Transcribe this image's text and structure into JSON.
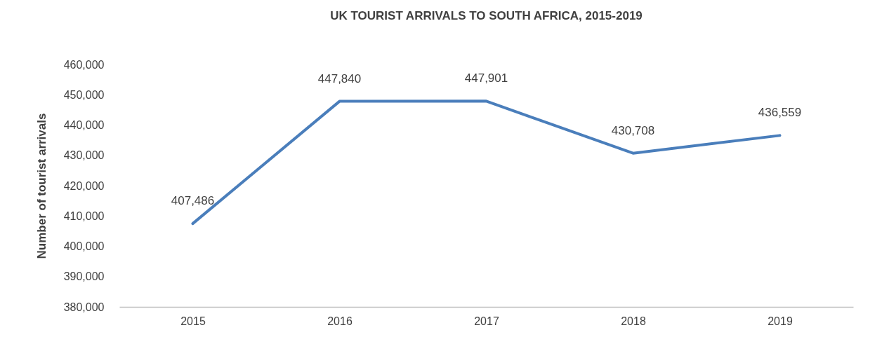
{
  "chart_data": {
    "type": "line",
    "title": "UK TOURIST ARRIVALS TO SOUTH AFRICA, 2015-2019",
    "ylabel": "Number of tourist arrivals",
    "categories": [
      "2015",
      "2016",
      "2017",
      "2018",
      "2019"
    ],
    "values": [
      407486,
      447840,
      447901,
      430708,
      436559
    ],
    "value_labels": [
      "407,486",
      "447,840",
      "447,901",
      "430,708",
      "436,559"
    ],
    "color": "#4a7ebb",
    "ylim": [
      380000,
      460000
    ],
    "yticks": [
      {
        "value": 380000,
        "label": "380,000"
      },
      {
        "value": 390000,
        "label": "390,000"
      },
      {
        "value": 400000,
        "label": "400,000"
      },
      {
        "value": 410000,
        "label": "410,000"
      },
      {
        "value": 420000,
        "label": "420,000"
      },
      {
        "value": 430000,
        "label": "430,000"
      },
      {
        "value": 440000,
        "label": "440,000"
      },
      {
        "value": 450000,
        "label": "450,000"
      },
      {
        "value": 460000,
        "label": "460,000"
      }
    ],
    "grid": false,
    "marker": "none",
    "line_style": "solid"
  }
}
